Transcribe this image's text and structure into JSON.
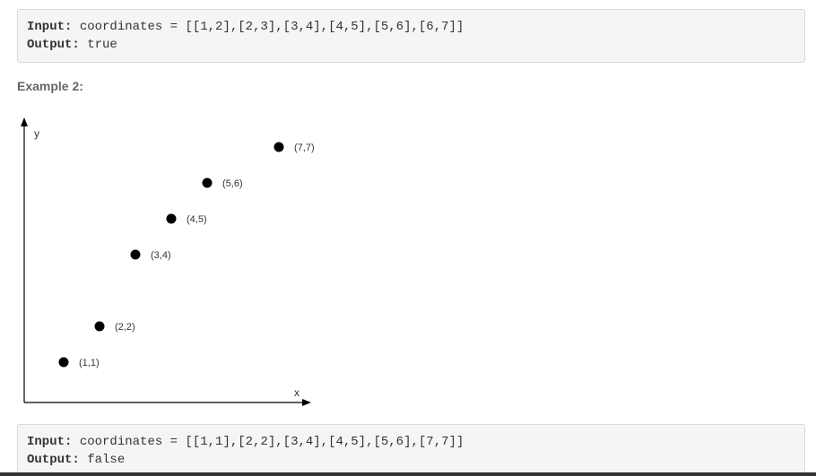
{
  "example1": {
    "input_label": "Input:",
    "input_text": "coordinates = [[1,2],[2,3],[3,4],[4,5],[5,6],[6,7]]",
    "output_label": "Output:",
    "output_text": "true"
  },
  "example2": {
    "title": "Example 2:",
    "input_label": "Input:",
    "input_text": "coordinates = [[1,1],[2,2],[3,4],[4,5],[5,6],[7,7]]",
    "output_label": "Output:",
    "output_text": "false"
  },
  "chart_data": {
    "type": "scatter",
    "title": "",
    "xlabel": "x",
    "ylabel": "y",
    "grid": false,
    "points": [
      {
        "x": 1,
        "y": 1,
        "label": "(1,1)"
      },
      {
        "x": 2,
        "y": 2,
        "label": "(2,2)"
      },
      {
        "x": 3,
        "y": 4,
        "label": "(3,4)"
      },
      {
        "x": 4,
        "y": 5,
        "label": "(4,5)"
      },
      {
        "x": 5,
        "y": 6,
        "label": "(5,6)"
      },
      {
        "x": 7,
        "y": 7,
        "label": "(7,7)"
      }
    ],
    "colors": {
      "point": "#000000",
      "axis": "#000000",
      "label": "#333333"
    }
  }
}
